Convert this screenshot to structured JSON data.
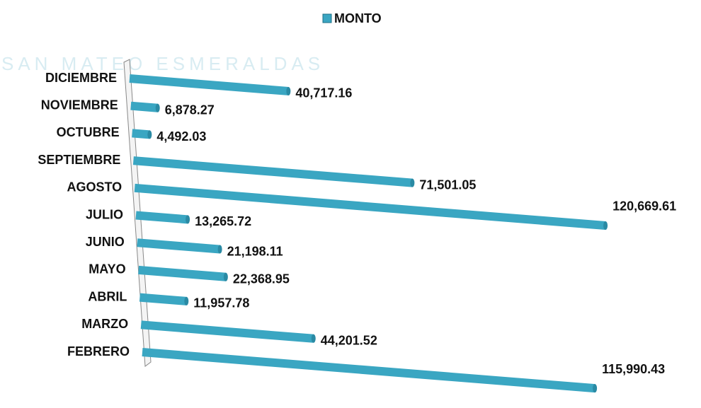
{
  "chart_data": {
    "type": "bar",
    "orientation": "horizontal",
    "watermark": "SAN MATEO ESMERALDAS",
    "categories": [
      "DICIEMBRE",
      "NOVIEMBRE",
      "OCTUBRE",
      "SEPTIEMBRE",
      "AGOSTO",
      "JULIO",
      "JUNIO",
      "MAYO",
      "ABRIL",
      "MARZO",
      "FEBRERO"
    ],
    "series": [
      {
        "name": "MONTO",
        "color": "#3aa6c2",
        "values": [
          40717.16,
          6878.27,
          4492.03,
          71501.05,
          120669.61,
          13265.72,
          21198.11,
          22368.95,
          11957.78,
          44201.52,
          115990.43
        ],
        "value_labels": [
          "40,717.16",
          "6,878.27",
          "4,492.03",
          "71,501.05",
          "120,669.61",
          "13,265.72",
          "21,198.11",
          "22,368.95",
          "11,957.78",
          "44,201.52",
          "115,990.43"
        ]
      }
    ],
    "legend": "top"
  }
}
